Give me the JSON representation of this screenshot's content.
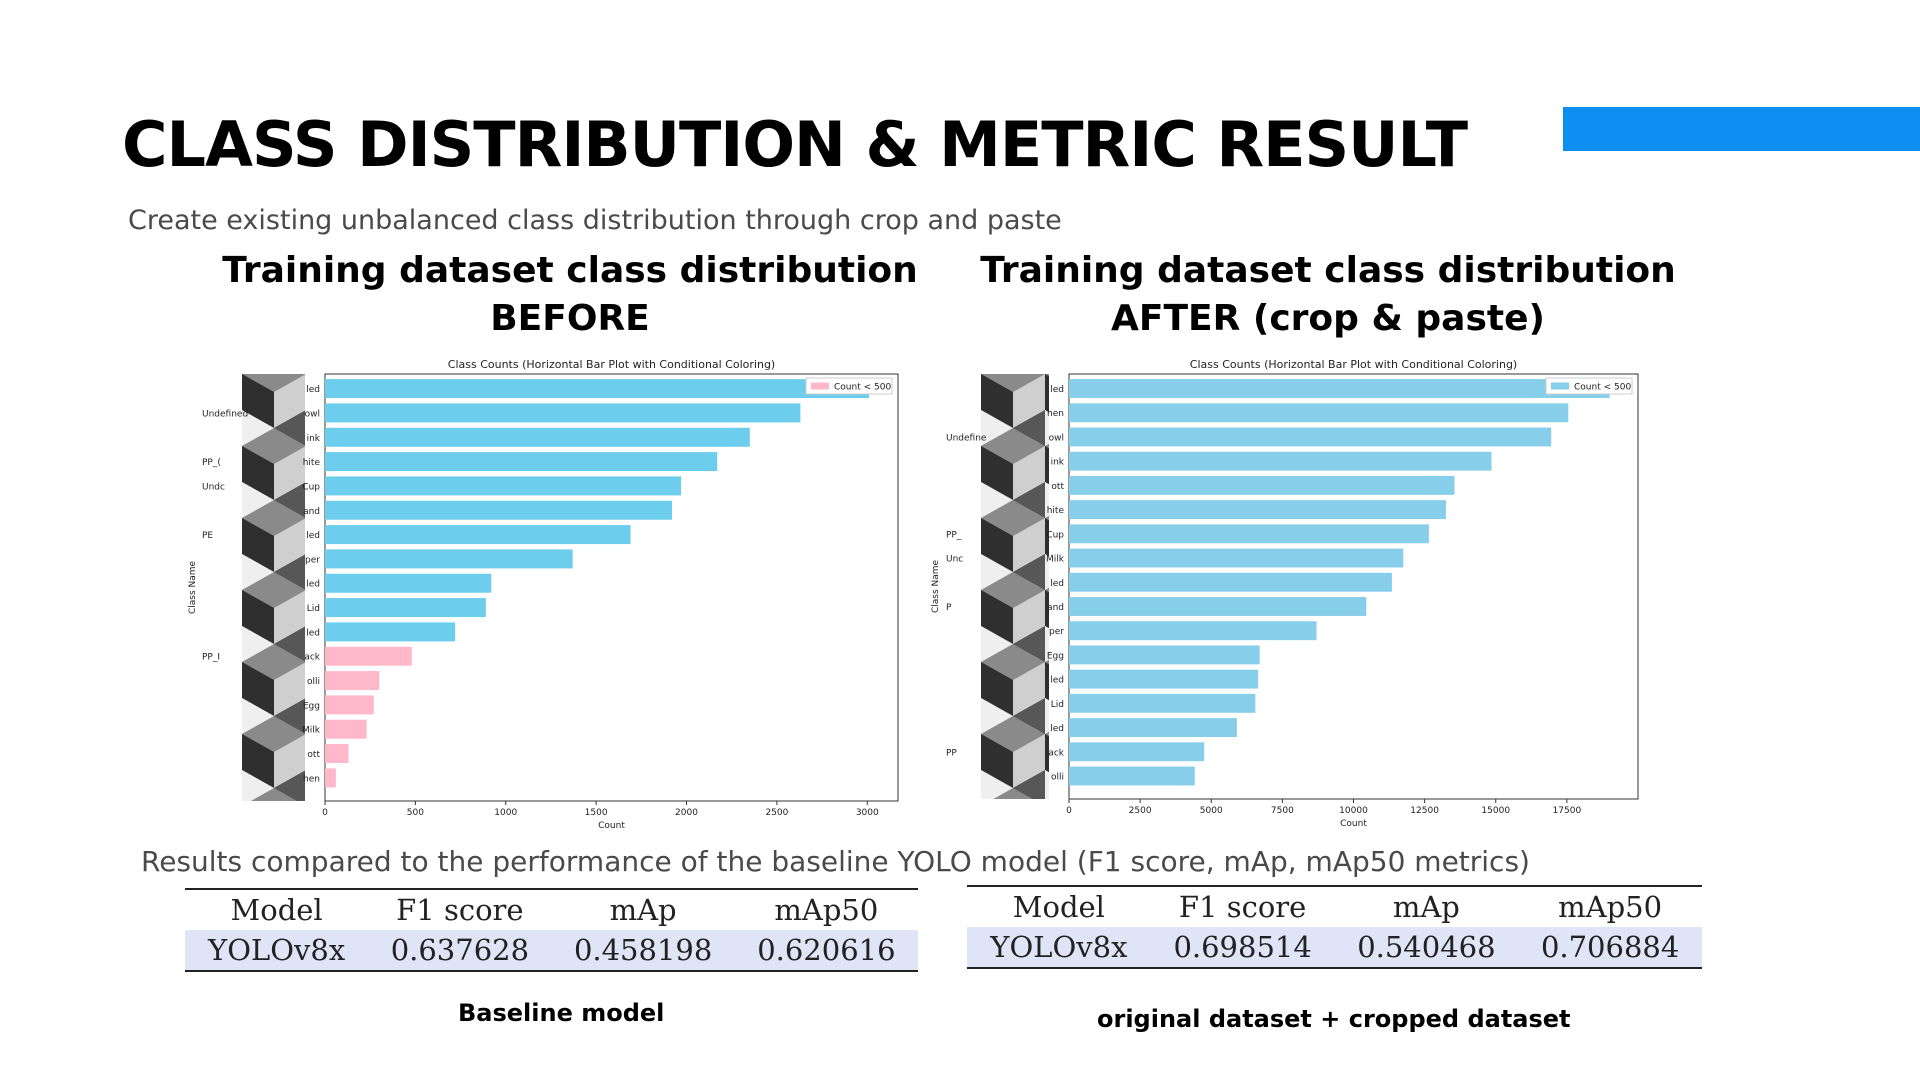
{
  "slide": {
    "title": "CLASS DISTRIBUTION  & METRIC RESULT",
    "subtitle": "Create existing unbalanced class distribution through crop and paste",
    "heading_before_line1": "Training dataset class distribution",
    "heading_before_line2": "BEFORE",
    "heading_after_line1": "Training dataset class distribution",
    "heading_after_line2": "AFTER (crop & paste)",
    "results_caption": "Results compared to the performance of the baseline YOLO model (F1 score, mAp, mAp50 metrics)",
    "caption_baseline": "Baseline model",
    "caption_crop": "original dataset + cropped dataset",
    "accent_color": "#0d8ef0"
  },
  "tables": {
    "baseline": {
      "headers": [
        "Model",
        "F1 score",
        "mAp",
        "mAp50"
      ],
      "row": [
        "YOLOv8x",
        "0.637628",
        "0.458198",
        "0.620616"
      ]
    },
    "crop": {
      "headers": [
        "Model",
        "F1 score",
        "mAp",
        "mAp50"
      ],
      "row": [
        "YOLOv8x",
        "0.698514",
        "0.540468",
        "0.706884"
      ]
    }
  },
  "chart_data": [
    {
      "type": "bar",
      "orientation": "horizontal",
      "title": "Class Counts (Horizontal Bar Plot with Conditional Coloring)",
      "xlabel": "Count",
      "ylabel": "Class Name",
      "legend": "Count < 500",
      "legend_position": "top-right",
      "xlim": [
        0,
        3170
      ],
      "xticks": [
        0,
        500,
        1000,
        1500,
        2000,
        2500,
        3000
      ],
      "threshold": 500,
      "color_high": "#6ccdec",
      "color_low": "#ffb8ca",
      "categories": [
        "led",
        "owl",
        "ink",
        "hite",
        "Cup",
        "and",
        "led",
        "per",
        "led",
        "Lid",
        "led",
        "ack",
        "olli",
        "Egg",
        "Milk",
        "ott",
        "hen"
      ],
      "left_labels": [
        {
          "index": 1,
          "text": "Undefined"
        },
        {
          "index": 3,
          "text": "PP_("
        },
        {
          "index": 4,
          "text": "Undc"
        },
        {
          "index": 6,
          "text": "PE"
        },
        {
          "index": 11,
          "text": "PP_I"
        }
      ],
      "values": [
        3010,
        2630,
        2350,
        2170,
        1970,
        1920,
        1690,
        1370,
        920,
        890,
        720,
        480,
        300,
        270,
        230,
        130,
        60
      ]
    },
    {
      "type": "bar",
      "orientation": "horizontal",
      "title": "Class Counts (Horizontal Bar Plot with Conditional Coloring)",
      "xlabel": "Count",
      "ylabel": "Class Name",
      "legend": "Count < 500",
      "legend_position": "top-right",
      "xlim": [
        0,
        20000
      ],
      "xticks": [
        0,
        2500,
        5000,
        7500,
        10000,
        12500,
        15000,
        17500
      ],
      "threshold": 500,
      "color_high": "#87ceeb",
      "color_low": "#ffb8ca",
      "categories": [
        "led",
        "hen",
        "owl",
        "ink",
        "ott",
        "hite",
        "Cup",
        "Milk",
        "led",
        "and",
        "per",
        "Egg",
        "led",
        "Lid",
        "led",
        "ack",
        "olli"
      ],
      "left_labels": [
        {
          "index": 2,
          "text": "Undefine"
        },
        {
          "index": 6,
          "text": "PP_"
        },
        {
          "index": 7,
          "text": "Unc"
        },
        {
          "index": 9,
          "text": "P"
        },
        {
          "index": 15,
          "text": "PP"
        }
      ],
      "values": [
        19000,
        17550,
        16950,
        14850,
        13550,
        13250,
        12650,
        11750,
        11350,
        10450,
        8700,
        6700,
        6650,
        6550,
        5900,
        4750,
        4420
      ]
    }
  ]
}
